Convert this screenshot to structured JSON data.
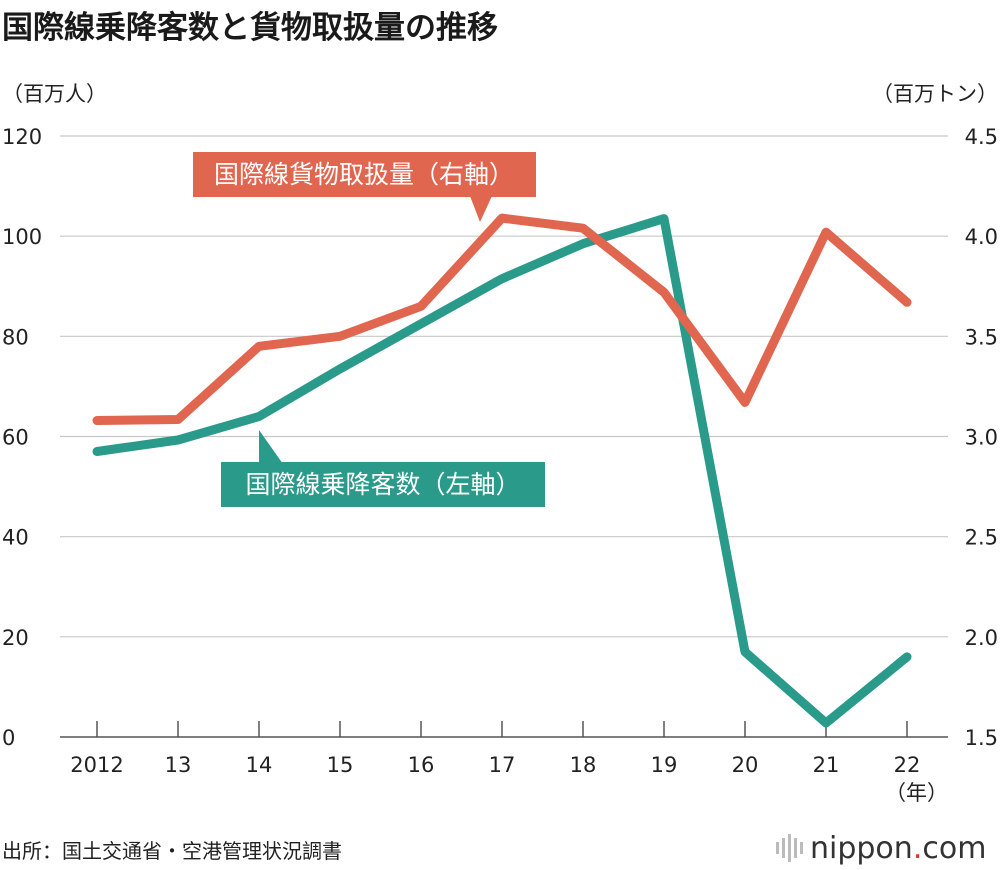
{
  "page": {
    "title": "国際線乗降客数と貨物取扱量の推移",
    "source": "出所：国土交通省・空港管理状況調書",
    "brand": {
      "main": "nippon",
      "dot": ".",
      "tld": "com"
    }
  },
  "chart_data": {
    "type": "line",
    "title": "国際線乗降客数と貨物取扱量の推移",
    "x": [
      "2012",
      "13",
      "14",
      "15",
      "16",
      "17",
      "18",
      "19",
      "20",
      "21",
      "22"
    ],
    "xunit": "（年）",
    "left_axis": {
      "unit": "（百万人）",
      "range": [
        0,
        120
      ],
      "ticks": [
        "0",
        "20",
        "40",
        "60",
        "80",
        "100",
        "120"
      ]
    },
    "right_axis": {
      "unit": "（百万トン）",
      "range": [
        1.5,
        4.5
      ],
      "ticks": [
        "1.5",
        "2.0",
        "2.5",
        "3.0",
        "3.5",
        "4.0",
        "4.5"
      ]
    },
    "grid": true,
    "series": [
      {
        "name": "国際線乗降客数（左軸）",
        "axis": "left",
        "color": "#2a9a8a",
        "values": [
          57,
          59.3,
          64,
          73.5,
          82.5,
          91.5,
          98.5,
          103.5,
          17,
          2.8,
          16
        ]
      },
      {
        "name": "国際線貨物取扱量（右軸）",
        "axis": "right",
        "color": "#e0664f",
        "values": [
          3.08,
          3.085,
          3.45,
          3.5,
          3.65,
          4.09,
          4.04,
          3.72,
          3.17,
          4.02,
          3.67
        ]
      }
    ]
  }
}
